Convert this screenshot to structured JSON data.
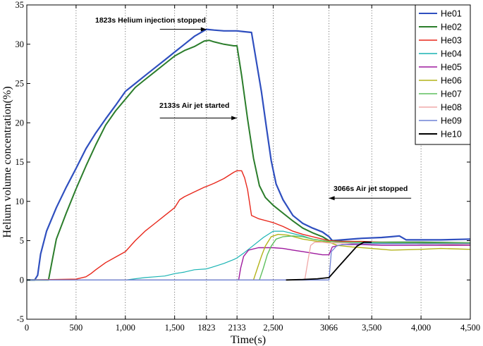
{
  "chart_data": {
    "type": "line",
    "xlabel": "Time(s)",
    "ylabel": "Helium volume concentration(%)",
    "xlim": [
      0,
      4500
    ],
    "ylim": [
      -5,
      35
    ],
    "xticks": [
      0,
      500,
      1000,
      1500,
      1823,
      2133,
      2500,
      3066,
      3500,
      4000,
      4500
    ],
    "xtick_labels": [
      "0",
      "500",
      "1,000",
      "1,500",
      "1823",
      "2133",
      "2,500",
      "3066",
      "3,500",
      "4,000",
      "4,500"
    ],
    "yticks": [
      -5,
      0,
      5,
      10,
      15,
      20,
      25,
      30,
      35
    ],
    "ytick_labels": [
      "-5",
      "0",
      "5",
      "10",
      "15",
      "20",
      "25",
      "30",
      "35"
    ],
    "grid": "vertical dotted",
    "legend": "top-right",
    "annotations": [
      {
        "text": "1823s Helium injection stopped",
        "arrow": "right",
        "x_from": 1350,
        "x_to": 1823,
        "y": 31.9
      },
      {
        "text": "2133s Air jet started",
        "arrow": "right",
        "x_from": 1350,
        "x_to": 2133,
        "y": 20.6
      },
      {
        "text": "3066s Air jet stopped",
        "arrow": "left",
        "x_from": 3900,
        "x_to": 3066,
        "y": 10.4
      }
    ],
    "series": [
      {
        "name": "He01",
        "color": "#2f4fbf",
        "width": 2.2,
        "points": [
          [
            0,
            0
          ],
          [
            80,
            0
          ],
          [
            110,
            0.6
          ],
          [
            140,
            3.3
          ],
          [
            200,
            6.2
          ],
          [
            300,
            9.2
          ],
          [
            400,
            11.8
          ],
          [
            500,
            14.2
          ],
          [
            600,
            16.7
          ],
          [
            700,
            18.7
          ],
          [
            800,
            20.5
          ],
          [
            900,
            22.2
          ],
          [
            1000,
            24
          ],
          [
            1100,
            25
          ],
          [
            1200,
            26
          ],
          [
            1300,
            27
          ],
          [
            1400,
            28
          ],
          [
            1500,
            29
          ],
          [
            1600,
            30
          ],
          [
            1700,
            31
          ],
          [
            1823,
            31.9
          ],
          [
            1900,
            31.8
          ],
          [
            2000,
            31.7
          ],
          [
            2100,
            31.7
          ],
          [
            2133,
            31.7
          ],
          [
            2200,
            31.6
          ],
          [
            2280,
            31.5
          ],
          [
            2320,
            28.5
          ],
          [
            2380,
            24
          ],
          [
            2430,
            19.5
          ],
          [
            2480,
            15.2
          ],
          [
            2530,
            12.2
          ],
          [
            2600,
            10.2
          ],
          [
            2700,
            8.2
          ],
          [
            2800,
            7.2
          ],
          [
            2900,
            6.6
          ],
          [
            3000,
            6.1
          ],
          [
            3066,
            5.5
          ],
          [
            3100,
            5
          ],
          [
            3200,
            5.1
          ],
          [
            3400,
            5.3
          ],
          [
            3600,
            5.4
          ],
          [
            3700,
            5.5
          ],
          [
            3780,
            5.6
          ],
          [
            3850,
            5.1
          ],
          [
            4000,
            5.1
          ],
          [
            4200,
            5.1
          ],
          [
            4500,
            5.2
          ]
        ]
      },
      {
        "name": "He02",
        "color": "#2b7d2b",
        "width": 2,
        "points": [
          [
            0,
            0
          ],
          [
            220,
            0
          ],
          [
            260,
            2.6
          ],
          [
            300,
            5.2
          ],
          [
            400,
            8.5
          ],
          [
            500,
            11.6
          ],
          [
            600,
            14.5
          ],
          [
            700,
            17.2
          ],
          [
            800,
            19.7
          ],
          [
            900,
            21.5
          ],
          [
            1000,
            23
          ],
          [
            1100,
            24.5
          ],
          [
            1200,
            25.5
          ],
          [
            1300,
            26.5
          ],
          [
            1400,
            27.5
          ],
          [
            1500,
            28.5
          ],
          [
            1600,
            29.2
          ],
          [
            1700,
            29.7
          ],
          [
            1800,
            30.4
          ],
          [
            1850,
            30.5
          ],
          [
            1900,
            30.3
          ],
          [
            2000,
            30
          ],
          [
            2100,
            29.8
          ],
          [
            2133,
            29.8
          ],
          [
            2180,
            26
          ],
          [
            2240,
            20.5
          ],
          [
            2300,
            15.5
          ],
          [
            2360,
            12
          ],
          [
            2420,
            10.5
          ],
          [
            2500,
            9.5
          ],
          [
            2600,
            8.5
          ],
          [
            2700,
            7.5
          ],
          [
            2800,
            6.6
          ],
          [
            2900,
            6
          ],
          [
            3000,
            5.5
          ],
          [
            3066,
            5
          ],
          [
            3200,
            4.9
          ],
          [
            3500,
            4.8
          ],
          [
            4000,
            4.8
          ],
          [
            4500,
            4.7
          ]
        ]
      },
      {
        "name": "He03",
        "color": "#e8281c",
        "width": 1.4,
        "points": [
          [
            0,
            0
          ],
          [
            500,
            0.1
          ],
          [
            600,
            0.4
          ],
          [
            650,
            0.8
          ],
          [
            700,
            1.3
          ],
          [
            800,
            2.2
          ],
          [
            900,
            2.9
          ],
          [
            1000,
            3.6
          ],
          [
            1100,
            5
          ],
          [
            1200,
            6.2
          ],
          [
            1300,
            7.2
          ],
          [
            1400,
            8.2
          ],
          [
            1500,
            9.2
          ],
          [
            1550,
            10.2
          ],
          [
            1600,
            10.6
          ],
          [
            1700,
            11.2
          ],
          [
            1800,
            11.8
          ],
          [
            1823,
            11.9
          ],
          [
            1900,
            12.3
          ],
          [
            2000,
            12.9
          ],
          [
            2100,
            13.7
          ],
          [
            2133,
            13.9
          ],
          [
            2180,
            13.9
          ],
          [
            2210,
            13
          ],
          [
            2240,
            11.5
          ],
          [
            2280,
            8.2
          ],
          [
            2350,
            7.8
          ],
          [
            2500,
            7.3
          ],
          [
            2600,
            6.8
          ],
          [
            2700,
            6.2
          ],
          [
            2800,
            5.8
          ],
          [
            2900,
            5.5
          ],
          [
            3000,
            5.2
          ],
          [
            3066,
            5
          ],
          [
            3200,
            4.9
          ],
          [
            3400,
            4.9
          ],
          [
            3600,
            4.8
          ],
          [
            4000,
            4.6
          ],
          [
            4500,
            4.5
          ]
        ]
      },
      {
        "name": "He04",
        "color": "#1ab4b4",
        "width": 1.2,
        "points": [
          [
            0,
            0
          ],
          [
            1000,
            0
          ],
          [
            1200,
            0.3
          ],
          [
            1300,
            0.4
          ],
          [
            1400,
            0.5
          ],
          [
            1500,
            0.8
          ],
          [
            1600,
            1
          ],
          [
            1700,
            1.3
          ],
          [
            1823,
            1.4
          ],
          [
            1900,
            1.7
          ],
          [
            2000,
            2.1
          ],
          [
            2100,
            2.6
          ],
          [
            2133,
            2.8
          ],
          [
            2200,
            3.4
          ],
          [
            2300,
            4.4
          ],
          [
            2400,
            5.4
          ],
          [
            2500,
            6.2
          ],
          [
            2600,
            6.2
          ],
          [
            2700,
            5.9
          ],
          [
            2800,
            5.6
          ],
          [
            2900,
            5.2
          ],
          [
            3000,
            5
          ],
          [
            3066,
            4.9
          ],
          [
            3200,
            4.8
          ],
          [
            3500,
            4.7
          ],
          [
            4000,
            4.6
          ],
          [
            4500,
            4.6
          ]
        ]
      },
      {
        "name": "He05",
        "color": "#9e1a9e",
        "width": 1.4,
        "points": [
          [
            0,
            0
          ],
          [
            2150,
            0
          ],
          [
            2170,
            1.5
          ],
          [
            2200,
            3
          ],
          [
            2250,
            3.8
          ],
          [
            2350,
            4.1
          ],
          [
            2500,
            4.1
          ],
          [
            2600,
            4
          ],
          [
            2700,
            3.8
          ],
          [
            2800,
            3.6
          ],
          [
            2900,
            3.4
          ],
          [
            3000,
            3.2
          ],
          [
            3066,
            3.2
          ],
          [
            3100,
            4.2
          ],
          [
            3200,
            4.5
          ],
          [
            3400,
            4.5
          ],
          [
            3600,
            4.4
          ],
          [
            4000,
            4.4
          ],
          [
            4500,
            4.4
          ]
        ]
      },
      {
        "name": "He06",
        "color": "#b3b319",
        "width": 1.4,
        "points": [
          [
            0,
            0
          ],
          [
            2300,
            0
          ],
          [
            2340,
            1.5
          ],
          [
            2380,
            3
          ],
          [
            2420,
            4.3
          ],
          [
            2480,
            5.5
          ],
          [
            2550,
            5.8
          ],
          [
            2650,
            5.7
          ],
          [
            2800,
            5.2
          ],
          [
            2950,
            4.9
          ],
          [
            3066,
            4.8
          ],
          [
            3150,
            4.4
          ],
          [
            3300,
            4.2
          ],
          [
            3500,
            4
          ],
          [
            3700,
            3.8
          ],
          [
            4000,
            3.9
          ],
          [
            4200,
            4
          ],
          [
            4500,
            3.9
          ]
        ]
      },
      {
        "name": "He07",
        "color": "#5fbf5f",
        "width": 1.4,
        "points": [
          [
            0,
            0
          ],
          [
            2360,
            0
          ],
          [
            2400,
            1.5
          ],
          [
            2440,
            3.2
          ],
          [
            2480,
            4.3
          ],
          [
            2530,
            5.2
          ],
          [
            2600,
            5.5
          ],
          [
            2700,
            5.6
          ],
          [
            2800,
            5.5
          ],
          [
            2900,
            5.2
          ],
          [
            3000,
            5
          ],
          [
            3066,
            4.9
          ],
          [
            3200,
            4.8
          ],
          [
            3500,
            4.8
          ],
          [
            4000,
            4.7
          ],
          [
            4500,
            4.7
          ]
        ]
      },
      {
        "name": "He08",
        "color": "#f0a8a8",
        "width": 1.3,
        "points": [
          [
            0,
            0
          ],
          [
            2820,
            0
          ],
          [
            2840,
            1.5
          ],
          [
            2860,
            3
          ],
          [
            2880,
            4.4
          ],
          [
            2920,
            4.8
          ],
          [
            3000,
            4.8
          ],
          [
            3066,
            4.7
          ],
          [
            3200,
            4.7
          ],
          [
            3500,
            4.6
          ],
          [
            4000,
            4.6
          ],
          [
            4500,
            4.5
          ]
        ]
      },
      {
        "name": "He09",
        "color": "#6f82d6",
        "width": 1.3,
        "points": [
          [
            0,
            0
          ],
          [
            3066,
            0
          ],
          [
            3090,
            3.6
          ],
          [
            3150,
            4.4
          ],
          [
            3300,
            4.6
          ],
          [
            3500,
            4.6
          ],
          [
            4000,
            4.6
          ],
          [
            4500,
            4.6
          ]
        ]
      },
      {
        "name": "He10",
        "color": "#000000",
        "width": 1.8,
        "points": [
          [
            2630,
            0
          ],
          [
            2800,
            0.05
          ],
          [
            2950,
            0.15
          ],
          [
            3066,
            0.3
          ],
          [
            3150,
            1.5
          ],
          [
            3250,
            2.9
          ],
          [
            3350,
            4.3
          ],
          [
            3420,
            4.8
          ],
          [
            3500,
            4.8
          ]
        ]
      }
    ]
  }
}
